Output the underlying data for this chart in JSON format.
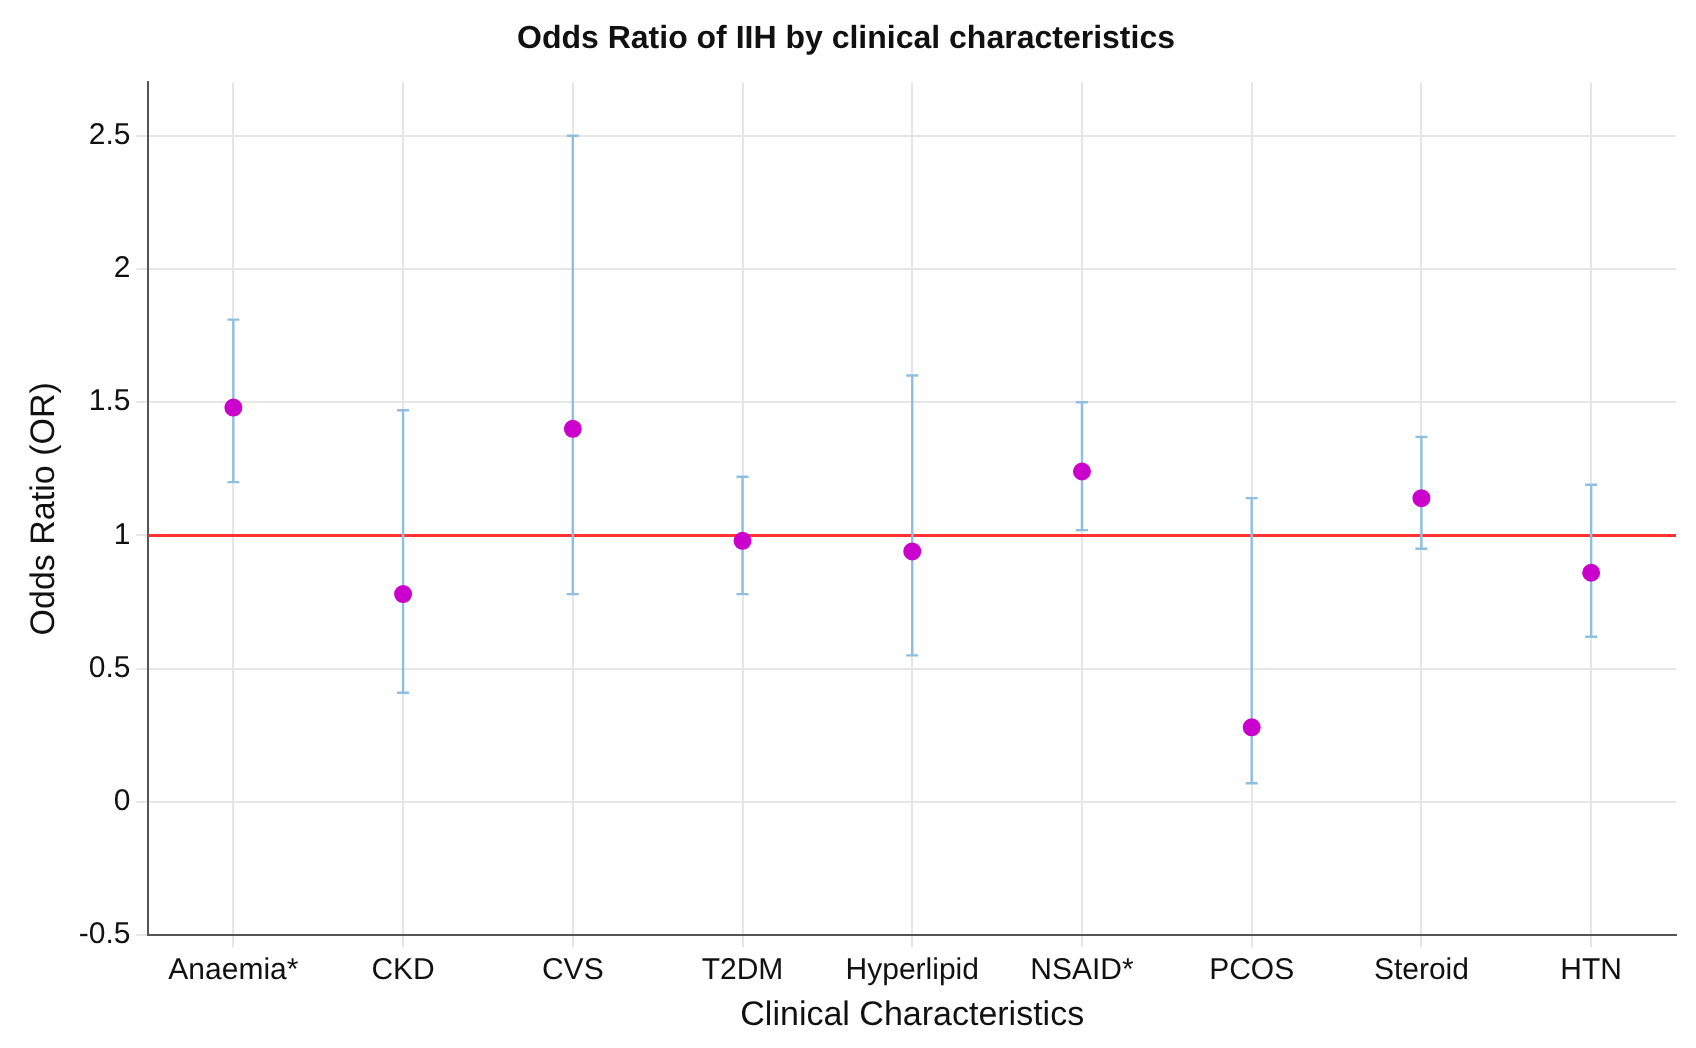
{
  "chart_data": {
    "type": "scatter",
    "title": "Odds Ratio of IIH by clinical characteristics",
    "xlabel": "Clinical Characteristics",
    "ylabel": "Odds Ratio (OR)",
    "categories": [
      "Anaemia*",
      "CKD",
      "CVS",
      "T2DM",
      "Hyperlipid",
      "NSAID*",
      "PCOS",
      "Steroid",
      "HTN"
    ],
    "series": [
      {
        "color": "#cc00cc",
        "values": [
          1.48,
          0.78,
          1.4,
          0.98,
          0.94,
          1.24,
          0.28,
          1.14,
          0.86
        ],
        "errors": [
          [
            1.2,
            1.81
          ],
          [
            0.41,
            1.47
          ],
          [
            0.78,
            2.5
          ],
          [
            0.78,
            1.22
          ],
          [
            0.55,
            1.6
          ],
          [
            1.02,
            1.5
          ],
          [
            0.07,
            1.14
          ],
          [
            0.95,
            1.37
          ],
          [
            0.62,
            1.19
          ]
        ]
      }
    ],
    "ylim": [
      -0.5,
      2.7
    ],
    "yticks": [
      -0.5,
      0,
      0.5,
      1,
      1.5,
      2,
      2.5
    ],
    "ref_lines": [
      {
        "axis": "y",
        "value": 1,
        "color": "#ff3333"
      }
    ],
    "grid": true,
    "legend": false,
    "marker": "circle"
  }
}
